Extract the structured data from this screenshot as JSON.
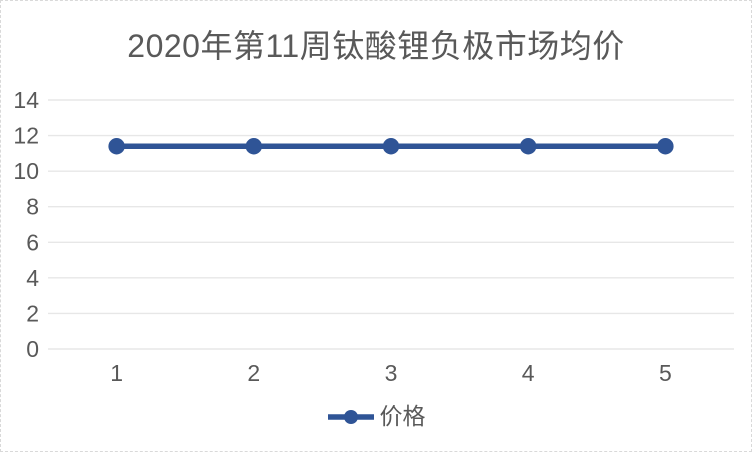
{
  "chart_data": {
    "type": "line",
    "title": "2020年第11周钛酸锂负极市场均价",
    "categories": [
      "1",
      "2",
      "3",
      "4",
      "5"
    ],
    "series": [
      {
        "name": "价格",
        "values": [
          11.4,
          11.4,
          11.4,
          11.4,
          11.4
        ]
      }
    ],
    "xlabel": "",
    "ylabel": "",
    "ylim": [
      0,
      14
    ],
    "yticks": [
      0,
      2,
      4,
      6,
      8,
      10,
      12,
      14
    ],
    "grid": true,
    "marker": "circle",
    "legend_position": "bottom",
    "colors": {
      "series": "#2F5496",
      "grid": "#E7E7E7",
      "text": "#595959",
      "frame_border": "#D9D9D9",
      "background": "#FFFFFF"
    }
  }
}
